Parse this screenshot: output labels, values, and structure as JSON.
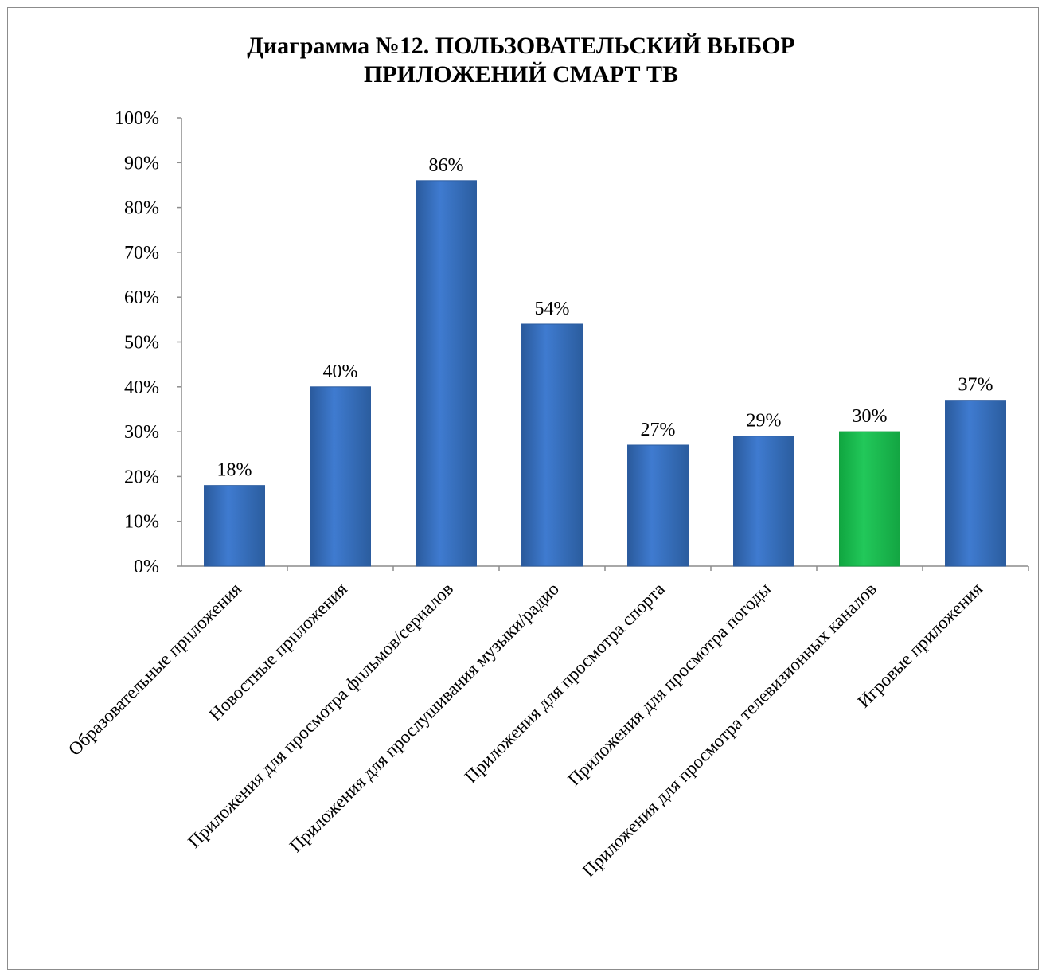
{
  "chart_data": {
    "type": "bar",
    "title_line1": "Диаграмма №12. ПОЛЬЗОВАТЕЛЬСКИЙ ВЫБОР",
    "title_line2": "ПРИЛОЖЕНИЙ СМАРТ ТВ",
    "categories": [
      "Образовательные приложения",
      "Новостные приложения",
      "Приложения для просмотра фильмов/сериалов",
      "Приложения для прослушивания музыки/радио",
      "Приложения для просмотра спорта",
      "Приложения для просмотра погоды",
      "Приложения для просмотра телевизионных каналов",
      "Игровые приложения"
    ],
    "values": [
      18,
      40,
      86,
      54,
      27,
      29,
      30,
      37
    ],
    "data_labels": [
      "18%",
      "40%",
      "86%",
      "54%",
      "27%",
      "29%",
      "30%",
      "37%"
    ],
    "y_ticks": [
      "0%",
      "10%",
      "20%",
      "30%",
      "40%",
      "50%",
      "60%",
      "70%",
      "80%",
      "90%",
      "100%"
    ],
    "ylim": [
      0,
      100
    ],
    "grid": false,
    "legend": "none",
    "colors": {
      "bar": "#3a73c4",
      "bar_dark": "#2c5c9f",
      "highlight": "#1fbf52",
      "highlight_dark": "#12a040",
      "highlight_index": 6
    }
  }
}
